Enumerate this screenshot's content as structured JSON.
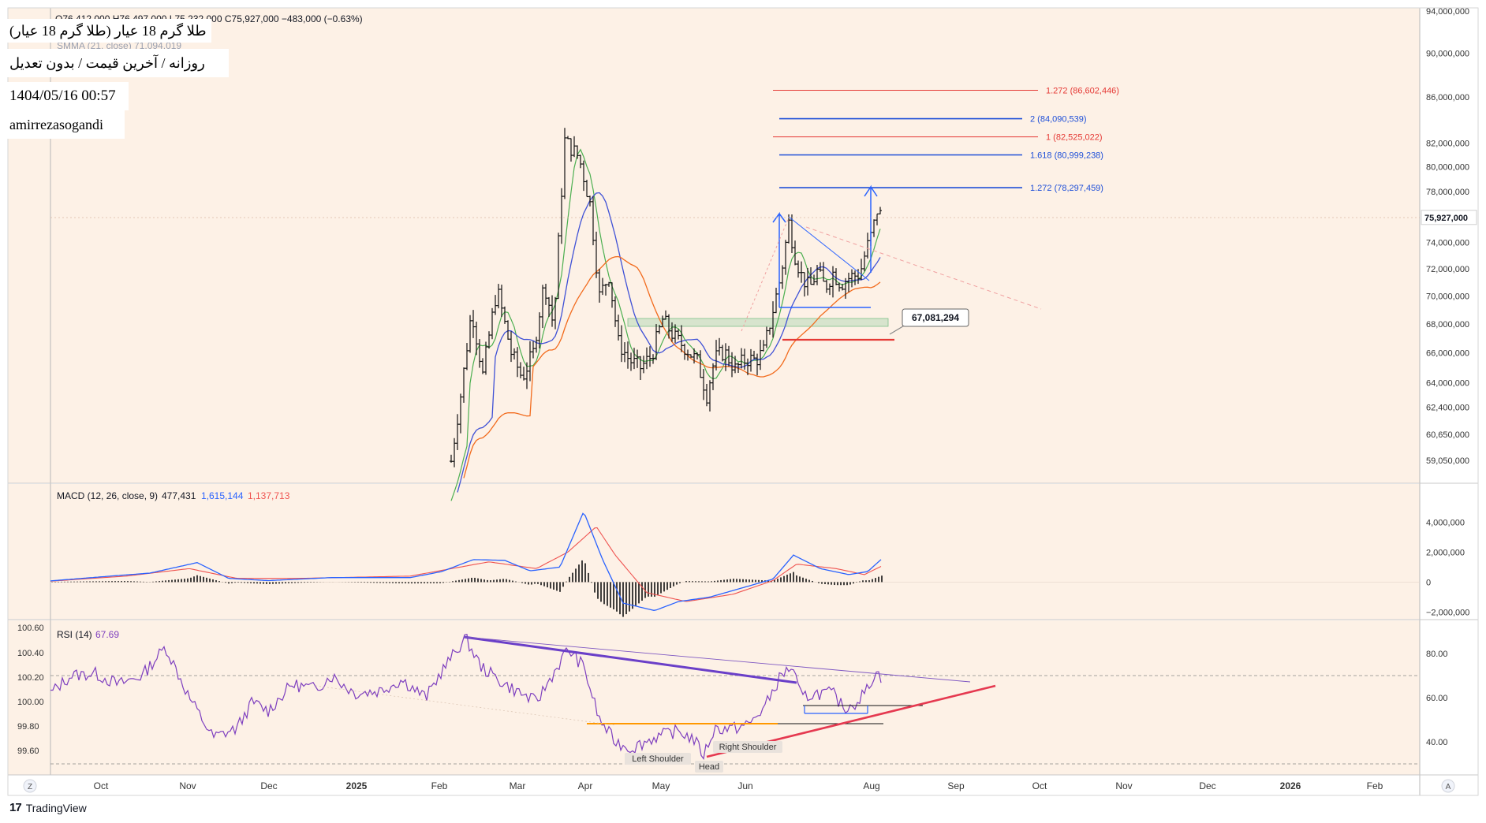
{
  "window": {
    "ohlc_line": "O76,412,000  H76,497,000  L75,232,000  C75,927,000  −483,000 (−0.63%)",
    "title_line1": "(طلا گرم 18 عیار (طلا گرم 18 عیار",
    "title_line2": "روزانه / آخرین قیمت / بدون تعدیل",
    "datetime": "1404/05/16 00:57",
    "author": "amirrezasogandi",
    "smma_label": "SMMA (21, close)  71,094,019",
    "branding": "TradingView",
    "left_corner": "Z",
    "right_corner": "A"
  },
  "colors": {
    "background": "#fdf1e6",
    "candle": "#111111",
    "green_ma": "#4caf50",
    "blue_ma": "#3f51d6",
    "orange_ma": "#f26b1d",
    "fib_blue": "#1e4fd8",
    "fib_red": "#e53935",
    "macd_line": "#2962ff",
    "signal_line": "#ef5350",
    "rsi_line": "#7e3fbf",
    "trend_purple": "#6a3fc8",
    "trend_red": "#e53950",
    "shoulder_orange": "#ff9800"
  },
  "chart_data": [
    {
      "type": "candlestick",
      "name": "price",
      "yscale": "log",
      "ylim": [
        58000000,
        94000000
      ],
      "y_ticks": [
        "94,000,000",
        "90,000,000",
        "86,000,000",
        "82,000,000",
        "80,000,000",
        "78,000,000",
        "74,000,000",
        "72,000,000",
        "70,000,000",
        "68,000,000",
        "66,000,000",
        "64,000,000",
        "62,400,000",
        "60,650,000",
        "59,050,000"
      ],
      "last_price": "75,927,000",
      "x_ticks": [
        "Oct",
        "Nov",
        "Dec",
        "2025",
        "Feb",
        "Mar",
        "Apr",
        "May",
        "Jun",
        "Aug",
        "Sep",
        "Oct",
        "Nov",
        "Dec",
        "2026",
        "Feb"
      ],
      "fib_levels": [
        {
          "label": "1.272 (86,602,446)",
          "value": 86602446,
          "color": "red"
        },
        {
          "label": "2 (84,090,539)",
          "value": 84090539,
          "color": "blue"
        },
        {
          "label": "1 (82,525,022)",
          "value": 82525022,
          "color": "red"
        },
        {
          "label": "1.618 (80,999,238)",
          "value": 80999238,
          "color": "blue"
        },
        {
          "label": "1.272 (78,297,459)",
          "value": 78297459,
          "color": "blue"
        }
      ],
      "callout": "67,081,294"
    },
    {
      "type": "line",
      "name": "macd",
      "label": "MACD (12, 26, close, 9)",
      "values_text": [
        "477,431",
        "1,615,144",
        "1,137,713"
      ],
      "ylim": [
        -2500000,
        5800000
      ],
      "y_ticks": [
        "4,000,000",
        "2,000,000",
        "0",
        "−2,000,000"
      ]
    },
    {
      "type": "line",
      "name": "rsi",
      "label": "RSI (14)",
      "value_text": "67.69",
      "ylim": [
        25,
        95
      ],
      "y_ticks": [
        "80.00",
        "60.00",
        "40.00"
      ],
      "left_ticks": [
        "100.60",
        "100.40",
        "100.20",
        "100.00",
        "99.80",
        "99.60"
      ],
      "annotations": [
        "Left Shoulder",
        "Head",
        "Right Shoulder"
      ]
    }
  ]
}
